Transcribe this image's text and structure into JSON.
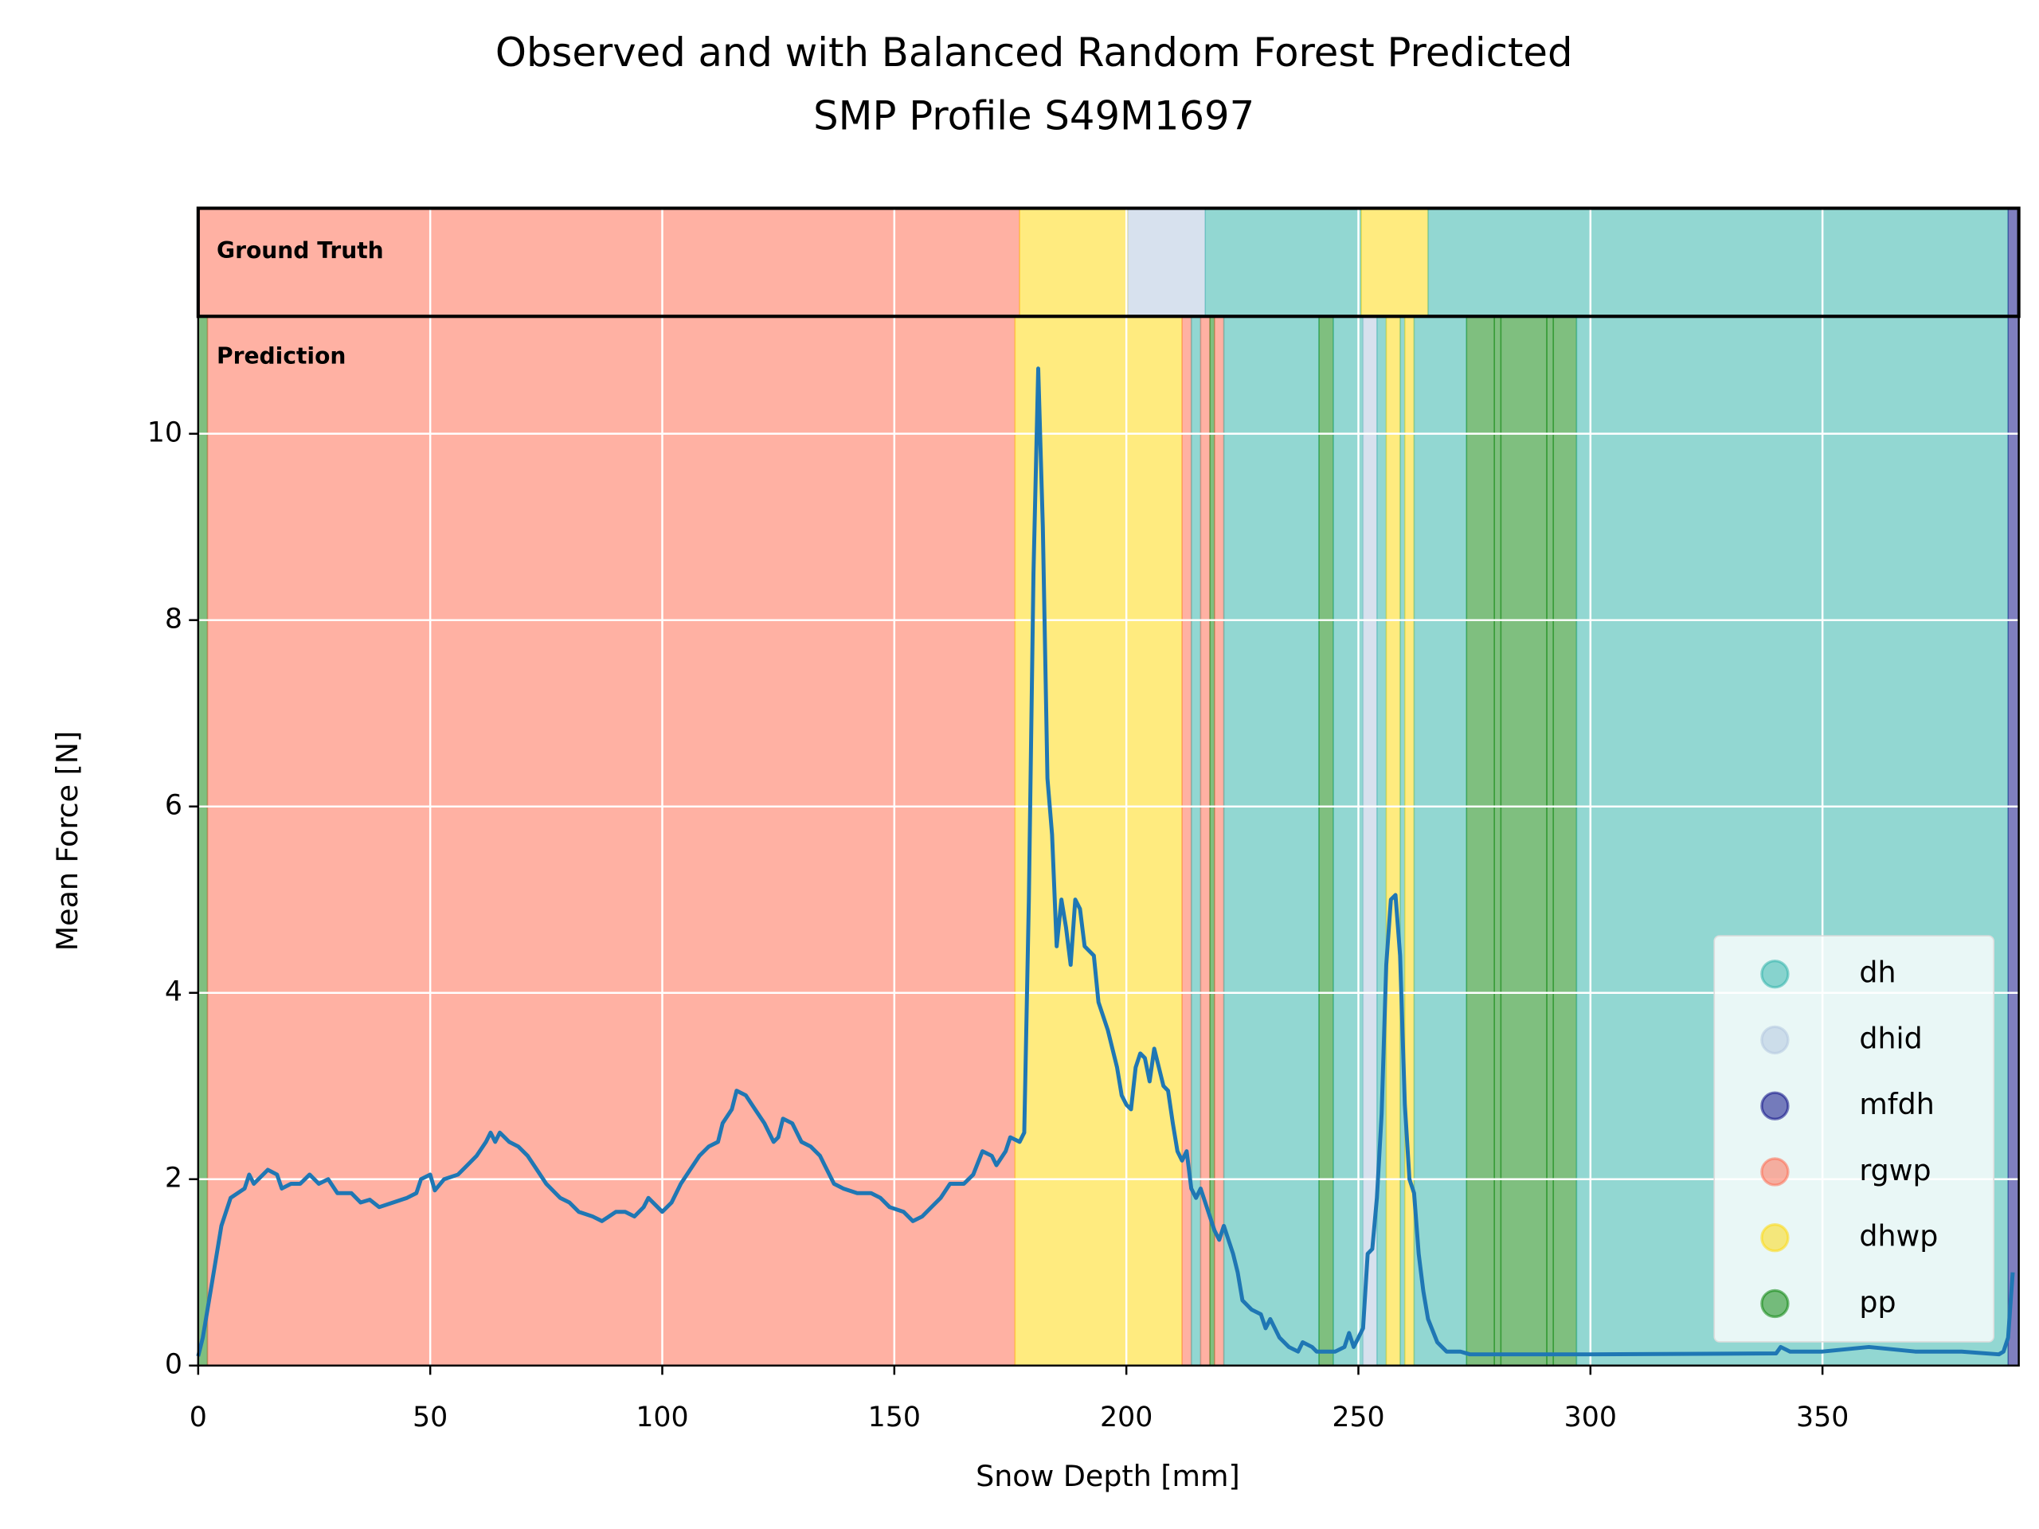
{
  "chart_data": {
    "type": "segmented-line",
    "title": [
      "Observed and with Balanced Random Forest Predicted",
      "SMP Profile S49M1697"
    ],
    "xlabel": "Snow Depth [mm]",
    "ylabel": "Mean Force [N]",
    "annotations": [
      "Ground Truth",
      "Prediction"
    ],
    "xlim": [
      0,
      392.3
    ],
    "ylim": [
      0,
      11.26
    ],
    "xticks": [
      0,
      50,
      100,
      150,
      200,
      250,
      300,
      350
    ],
    "yticks": [
      0,
      2,
      4,
      6,
      8,
      10
    ],
    "grid": true,
    "legend": "lower right",
    "classes": [
      {
        "name": "dh",
        "color": "#26b0a6"
      },
      {
        "name": "dhid",
        "color": "#b0c4de"
      },
      {
        "name": "mfdh",
        "color": "#000080"
      },
      {
        "name": "rgwp",
        "color": "#ff6347"
      },
      {
        "name": "dhwp",
        "color": "#ffd700"
      },
      {
        "name": "pp",
        "color": "#008000"
      }
    ],
    "ground_truth": [
      {
        "label": "rgwp",
        "start": 0,
        "end": 177
      },
      {
        "label": "dhwp",
        "start": 177,
        "end": 200.3
      },
      {
        "label": "dhid",
        "start": 200.3,
        "end": 217
      },
      {
        "label": "dh",
        "start": 217,
        "end": 250.6
      },
      {
        "label": "dhwp",
        "start": 250.6,
        "end": 265
      },
      {
        "label": "dh",
        "start": 265,
        "end": 390
      },
      {
        "label": "mfdh",
        "start": 390,
        "end": 392.3
      }
    ],
    "prediction": [
      {
        "label": "pp",
        "start": 0,
        "end": 2
      },
      {
        "label": "rgwp",
        "start": 2,
        "end": 176
      },
      {
        "label": "dhwp",
        "start": 176,
        "end": 212
      },
      {
        "label": "rgwp",
        "start": 212,
        "end": 214
      },
      {
        "label": "dh",
        "start": 214,
        "end": 216
      },
      {
        "label": "rgwp",
        "start": 216,
        "end": 218
      },
      {
        "label": "pp",
        "start": 218,
        "end": 219
      },
      {
        "label": "rgwp",
        "start": 219,
        "end": 221
      },
      {
        "label": "dh",
        "start": 221,
        "end": 241.5
      },
      {
        "label": "pp",
        "start": 241.5,
        "end": 244.6
      },
      {
        "label": "dh",
        "start": 244.6,
        "end": 251
      },
      {
        "label": "dhid",
        "start": 251,
        "end": 254
      },
      {
        "label": "dh",
        "start": 254,
        "end": 256
      },
      {
        "label": "dhwp",
        "start": 256,
        "end": 259
      },
      {
        "label": "dh",
        "start": 259,
        "end": 260
      },
      {
        "label": "dhwp",
        "start": 260,
        "end": 262
      },
      {
        "label": "dh",
        "start": 262,
        "end": 273.3
      },
      {
        "label": "pp",
        "start": 273.3,
        "end": 279.3
      },
      {
        "label": "pp",
        "start": 279.3,
        "end": 280.7
      },
      {
        "label": "pp",
        "start": 280.7,
        "end": 290.6
      },
      {
        "label": "pp",
        "start": 290.6,
        "end": 292
      },
      {
        "label": "pp",
        "start": 292,
        "end": 297
      },
      {
        "label": "dh",
        "start": 297,
        "end": 390
      },
      {
        "label": "mfdh",
        "start": 390,
        "end": 392.3
      }
    ],
    "series": [
      {
        "color": "#1f77b4",
        "x": [
          0,
          1,
          3,
          5,
          7,
          10,
          11,
          12,
          15,
          17,
          18,
          20,
          22,
          24,
          26,
          28,
          30,
          33,
          35,
          37,
          39,
          42,
          45,
          47,
          48,
          50,
          51,
          53,
          56,
          58,
          60,
          62,
          63,
          64,
          65,
          67,
          69,
          71,
          73,
          75,
          78,
          80,
          82,
          85,
          87,
          90,
          92,
          94,
          96,
          97,
          99,
          100,
          102,
          104,
          106,
          108,
          110,
          112,
          113,
          115,
          116,
          118,
          120,
          122,
          124,
          125,
          126,
          128,
          130,
          132,
          134,
          135,
          137,
          139,
          142,
          145,
          147,
          149,
          152,
          154,
          156,
          158,
          160,
          162,
          165,
          167,
          169,
          171,
          172,
          174,
          175,
          177,
          178,
          179,
          180,
          181,
          182,
          183,
          184,
          185,
          186,
          187,
          188,
          189,
          190,
          191,
          193,
          194,
          196,
          198,
          199,
          200,
          201,
          202,
          203,
          204,
          205,
          206,
          208,
          209,
          210,
          211,
          212,
          213,
          214,
          215,
          216,
          218,
          219,
          220,
          221,
          222,
          223,
          224,
          225,
          227,
          229,
          230,
          231,
          233,
          235,
          237,
          238,
          240,
          241,
          243,
          245,
          247,
          248,
          249,
          250,
          251,
          252,
          253,
          254,
          255,
          256,
          257,
          258,
          259,
          260,
          261,
          262,
          263,
          264,
          265,
          267,
          269,
          272,
          274,
          300,
          340,
          341,
          343,
          350,
          360,
          370,
          380,
          388,
          389,
          390,
          391
        ],
        "values": [
          0.1,
          0.3,
          0.9,
          1.5,
          1.8,
          1.9,
          2.05,
          1.95,
          2.1,
          2.05,
          1.9,
          1.95,
          1.95,
          2.05,
          1.95,
          2.0,
          1.85,
          1.85,
          1.75,
          1.78,
          1.7,
          1.75,
          1.8,
          1.85,
          2.0,
          2.05,
          1.88,
          2.0,
          2.05,
          2.15,
          2.25,
          2.4,
          2.5,
          2.4,
          2.5,
          2.4,
          2.35,
          2.25,
          2.1,
          1.95,
          1.8,
          1.75,
          1.65,
          1.6,
          1.55,
          1.65,
          1.65,
          1.6,
          1.7,
          1.8,
          1.7,
          1.65,
          1.75,
          1.95,
          2.1,
          2.25,
          2.35,
          2.4,
          2.6,
          2.75,
          2.95,
          2.9,
          2.75,
          2.6,
          2.4,
          2.45,
          2.65,
          2.6,
          2.4,
          2.35,
          2.25,
          2.15,
          1.95,
          1.9,
          1.85,
          1.85,
          1.8,
          1.7,
          1.65,
          1.55,
          1.6,
          1.7,
          1.8,
          1.95,
          1.95,
          2.05,
          2.3,
          2.25,
          2.15,
          2.3,
          2.45,
          2.4,
          2.5,
          5.0,
          8.5,
          10.7,
          9.0,
          6.3,
          5.7,
          4.5,
          5.0,
          4.7,
          4.3,
          5.0,
          4.9,
          4.5,
          4.4,
          3.9,
          3.6,
          3.2,
          2.9,
          2.8,
          2.75,
          3.2,
          3.35,
          3.3,
          3.05,
          3.4,
          3.0,
          2.95,
          2.6,
          2.3,
          2.2,
          2.3,
          1.9,
          1.8,
          1.9,
          1.6,
          1.45,
          1.35,
          1.5,
          1.35,
          1.2,
          1.0,
          0.7,
          0.6,
          0.55,
          0.4,
          0.5,
          0.3,
          0.2,
          0.15,
          0.25,
          0.2,
          0.15,
          0.15,
          0.15,
          0.2,
          0.35,
          0.2,
          0.3,
          0.4,
          1.2,
          1.25,
          1.8,
          2.7,
          4.3,
          5.0,
          5.05,
          4.4,
          2.8,
          2.0,
          1.85,
          1.2,
          0.8,
          0.5,
          0.25,
          0.15,
          0.15,
          0.12,
          0.12,
          0.13,
          0.2,
          0.15,
          0.15,
          0.2,
          0.15,
          0.15,
          0.12,
          0.15,
          0.3,
          1.0
        ]
      }
    ]
  }
}
